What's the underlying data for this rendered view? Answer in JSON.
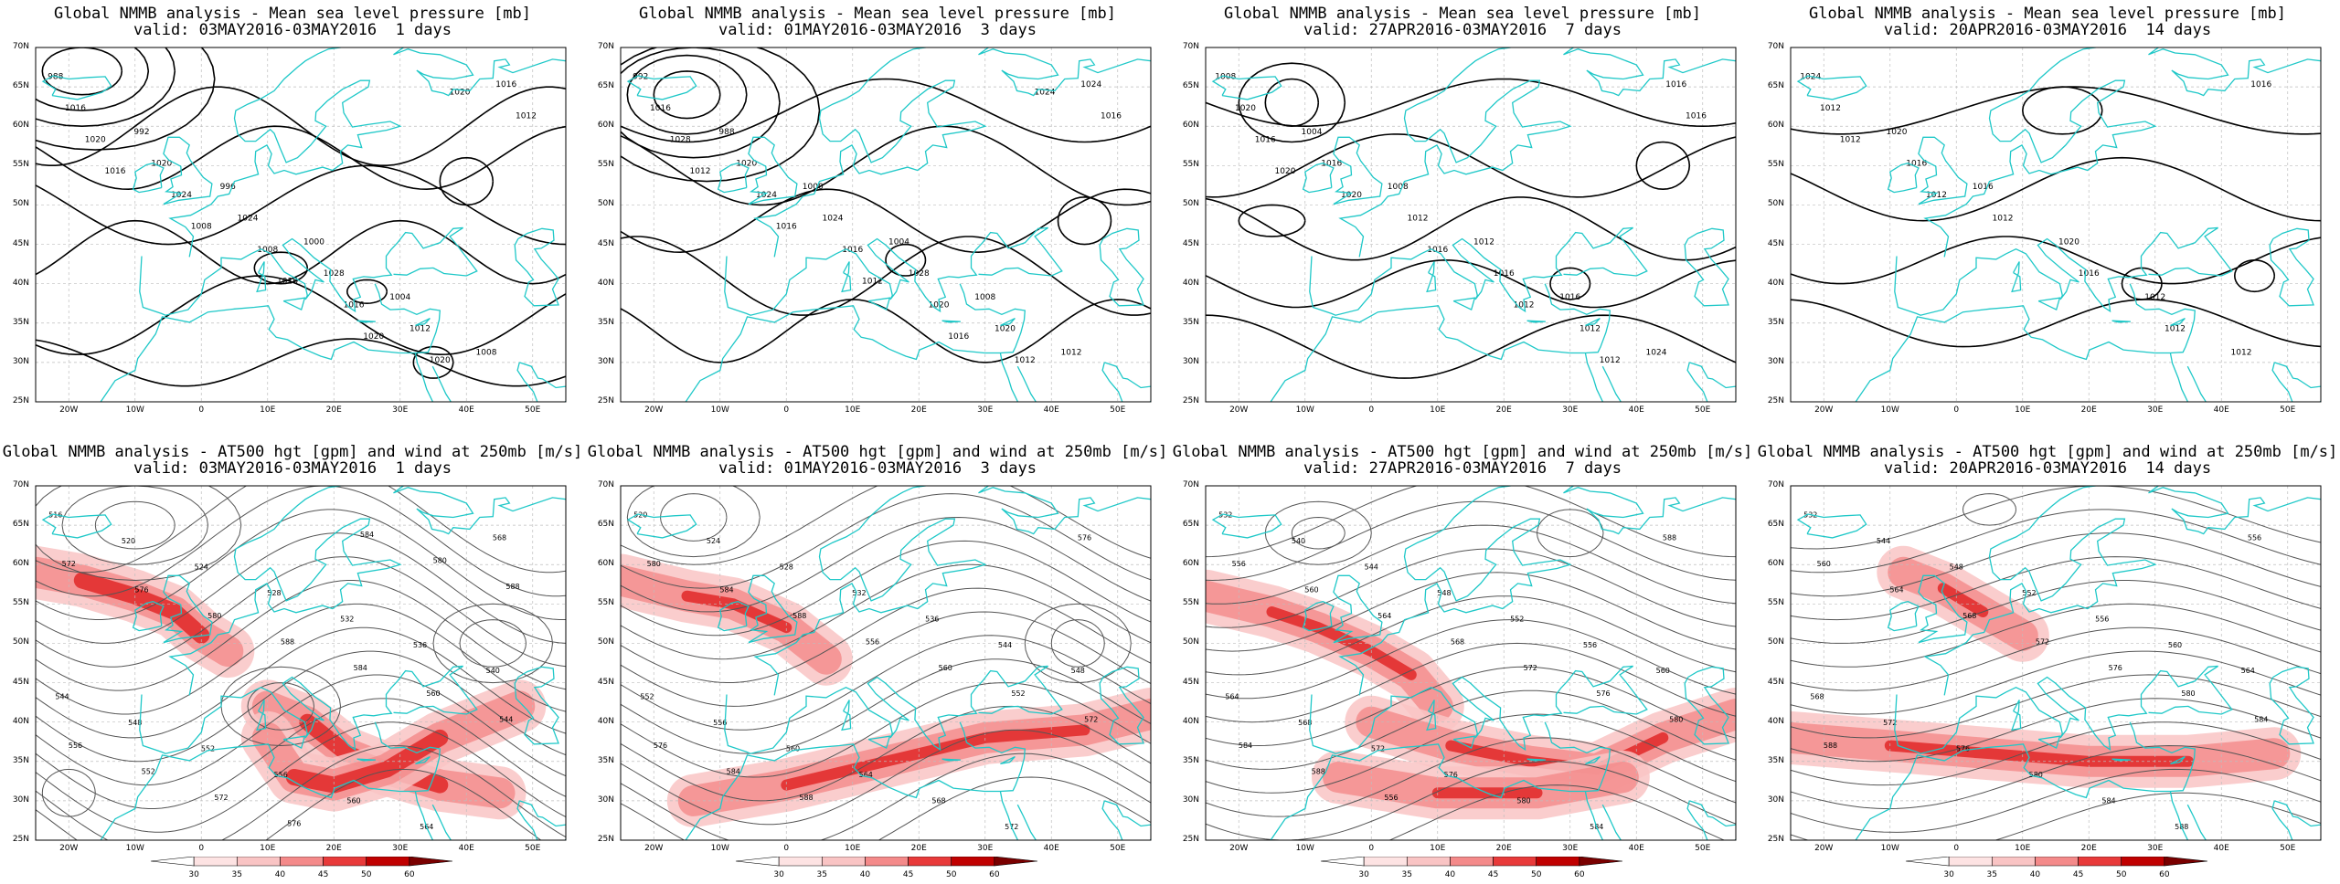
{
  "colors": {
    "coast": "#1fc8c8",
    "contour": "#000000",
    "hgt": "#555555",
    "grid": "#bdbdbd"
  },
  "lat_ticks": [
    "70N",
    "65N",
    "60N",
    "55N",
    "50N",
    "45N",
    "40N",
    "35N",
    "30N",
    "25N"
  ],
  "lon_ticks": [
    "20W",
    "10W",
    "0",
    "10E",
    "20E",
    "30E",
    "40E",
    "50E"
  ],
  "colorbar_ticks": [
    "30",
    "35",
    "40",
    "45",
    "50",
    "60"
  ],
  "panels_top": [
    {
      "title": "Global NMMB analysis - Mean sea level pressure [mb]",
      "valid": "valid: 03MAY2016-03MAY2016  1 days",
      "labels": [
        "988",
        "992",
        "996",
        "1000",
        "1004",
        "1008",
        "1016",
        "1020",
        "1024",
        "1028",
        "1012",
        "1016",
        "1020",
        "1024",
        "1008",
        "1016",
        "1020",
        "1012",
        "1016",
        "1008",
        "1016",
        "1020",
        "1020"
      ]
    },
    {
      "title": "Global NMMB analysis - Mean sea level pressure [mb]",
      "valid": "valid: 01MAY2016-03MAY2016  3 days",
      "labels": [
        "992",
        "988",
        "1000",
        "1004",
        "1008",
        "1012",
        "1016",
        "1020",
        "1024",
        "1028",
        "1020",
        "1024",
        "1028",
        "1024",
        "1016",
        "1020",
        "1012",
        "1016",
        "1012",
        "1016",
        "1012",
        "1016",
        "1024"
      ]
    },
    {
      "title": "Global NMMB analysis - Mean sea level pressure [mb]",
      "valid": "valid: 27APR2016-03MAY2016  7 days",
      "labels": [
        "1008",
        "1004",
        "1008",
        "1012",
        "1016",
        "1024",
        "1020",
        "1016",
        "1012",
        "1016",
        "1012",
        "1016",
        "1016",
        "1020",
        "1016",
        "1012",
        "1012",
        "1016",
        "1020"
      ]
    },
    {
      "title": "Global NMMB analysis - Mean sea level pressure [mb]",
      "valid": "valid: 20APR2016-03MAY2016  14 days",
      "labels": [
        "1024",
        "1020",
        "1016",
        "1020",
        "1012",
        "1012",
        "1012",
        "1016",
        "1012",
        "1016",
        "1012",
        "1016",
        "1012",
        "1012"
      ]
    }
  ],
  "panels_bottom": [
    {
      "title": "Global NMMB analysis - AT500 hgt [gpm] and wind at 250mb [m/s]",
      "valid": "valid: 03MAY2016-03MAY2016  1 days",
      "labels": [
        "516",
        "520",
        "524",
        "528",
        "532",
        "536",
        "540",
        "544",
        "548",
        "552",
        "556",
        "560",
        "564",
        "568",
        "572",
        "576",
        "580",
        "588",
        "584",
        "560",
        "544",
        "556",
        "552",
        "572",
        "576",
        "584",
        "580",
        "588"
      ]
    },
    {
      "title": "Global NMMB analysis - AT500 hgt [gpm] and wind at 250mb [m/s]",
      "valid": "valid: 01MAY2016-03MAY2016  3 days",
      "labels": [
        "520",
        "524",
        "528",
        "532",
        "536",
        "544",
        "548",
        "552",
        "556",
        "560",
        "564",
        "568",
        "572",
        "576",
        "580",
        "584",
        "588",
        "556",
        "560",
        "552",
        "572",
        "576",
        "584",
        "588"
      ]
    },
    {
      "title": "Global NMMB analysis - AT500 hgt [gpm] and wind at 250mb [m/s]",
      "valid": "valid: 27APR2016-03MAY2016  7 days",
      "labels": [
        "532",
        "540",
        "544",
        "548",
        "552",
        "556",
        "560",
        "564",
        "568",
        "572",
        "576",
        "580",
        "584",
        "588",
        "556",
        "560",
        "564",
        "568",
        "572",
        "576",
        "580",
        "584",
        "588",
        "556"
      ]
    },
    {
      "title": "Global NMMB analysis - AT500 hgt [gpm] and wind at 250mb [m/s]",
      "valid": "valid: 20APR2016-03MAY2016  14 days",
      "labels": [
        "532",
        "544",
        "548",
        "552",
        "556",
        "560",
        "564",
        "568",
        "572",
        "576",
        "580",
        "584",
        "588",
        "556",
        "560",
        "564",
        "568",
        "572",
        "576",
        "580",
        "584",
        "588"
      ]
    }
  ]
}
